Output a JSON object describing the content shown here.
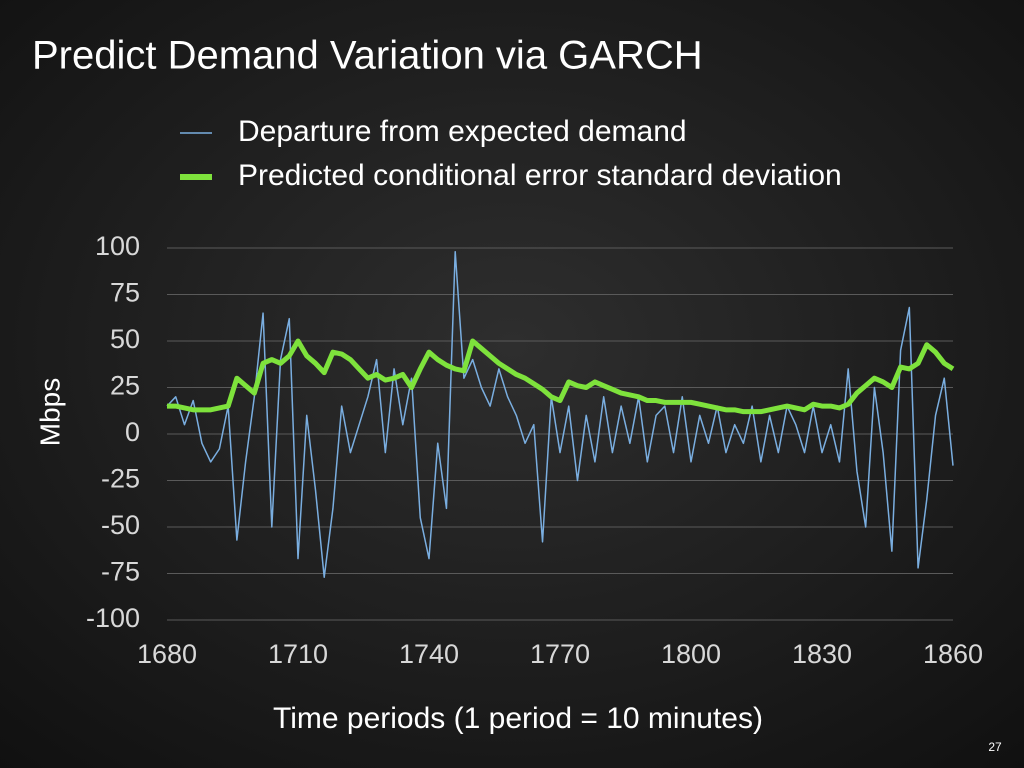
{
  "chart_data": {
    "type": "line",
    "title": "Predict Demand Variation via GARCH",
    "x_label": "Time periods (1 period = 10 minutes)",
    "y_label": "Mbps",
    "page_number": "27",
    "x": [
      1680,
      1682,
      1684,
      1686,
      1688,
      1690,
      1692,
      1694,
      1696,
      1698,
      1700,
      1702,
      1704,
      1706,
      1708,
      1710,
      1712,
      1714,
      1716,
      1718,
      1720,
      1722,
      1724,
      1726,
      1728,
      1730,
      1732,
      1734,
      1736,
      1738,
      1740,
      1742,
      1744,
      1746,
      1748,
      1750,
      1752,
      1754,
      1756,
      1758,
      1760,
      1762,
      1764,
      1766,
      1768,
      1770,
      1772,
      1774,
      1776,
      1778,
      1780,
      1782,
      1784,
      1786,
      1788,
      1790,
      1792,
      1794,
      1796,
      1798,
      1800,
      1802,
      1804,
      1806,
      1808,
      1810,
      1812,
      1814,
      1816,
      1818,
      1820,
      1822,
      1824,
      1826,
      1828,
      1830,
      1832,
      1834,
      1836,
      1838,
      1840,
      1842,
      1844,
      1846,
      1848,
      1850,
      1852,
      1854,
      1856,
      1858,
      1860
    ],
    "series": [
      {
        "name": "Departure from expected demand",
        "color": "#7aaee0",
        "width": 1.5,
        "values": [
          15,
          20,
          5,
          18,
          -5,
          -15,
          -8,
          15,
          -57,
          -15,
          20,
          65,
          -50,
          40,
          62,
          -67,
          10,
          -30,
          -77,
          -40,
          15,
          -10,
          5,
          20,
          40,
          -10,
          35,
          5,
          30,
          -45,
          -67,
          -5,
          -40,
          98,
          30,
          40,
          25,
          15,
          35,
          20,
          10,
          -5,
          5,
          -58,
          20,
          -10,
          15,
          -25,
          10,
          -15,
          20,
          -10,
          15,
          -5,
          20,
          -15,
          10,
          15,
          -10,
          20,
          -15,
          10,
          -5,
          15,
          -10,
          5,
          -5,
          15,
          -15,
          10,
          -10,
          15,
          5,
          -10,
          15,
          -10,
          5,
          -15,
          35,
          -20,
          -50,
          25,
          -10,
          -63,
          45,
          68,
          -72,
          -35,
          10,
          30,
          -17
        ]
      },
      {
        "name": "Predicted conditional error standard deviation",
        "color": "#7ee23c",
        "width": 5,
        "values": [
          15,
          15,
          14,
          13,
          13,
          13,
          14,
          15,
          30,
          26,
          22,
          38,
          40,
          38,
          42,
          50,
          42,
          38,
          33,
          44,
          43,
          40,
          35,
          30,
          32,
          29,
          30,
          32,
          25,
          35,
          44,
          40,
          37,
          35,
          34,
          50,
          46,
          42,
          38,
          35,
          32,
          30,
          27,
          24,
          20,
          18,
          28,
          26,
          25,
          28,
          26,
          24,
          22,
          21,
          20,
          18,
          18,
          17,
          17,
          17,
          17,
          16,
          15,
          14,
          13,
          13,
          12,
          12,
          12,
          13,
          14,
          15,
          14,
          13,
          16,
          15,
          15,
          14,
          16,
          22,
          26,
          30,
          28,
          25,
          36,
          35,
          38,
          48,
          44,
          38,
          35
        ]
      }
    ],
    "xlim": [
      1680,
      1860
    ],
    "xticks": [
      1680,
      1710,
      1740,
      1770,
      1800,
      1830,
      1860
    ],
    "ylim": [
      -100,
      100
    ],
    "yticks": [
      -100,
      -75,
      -50,
      -25,
      0,
      25,
      50,
      75,
      100
    ],
    "grid": true
  }
}
